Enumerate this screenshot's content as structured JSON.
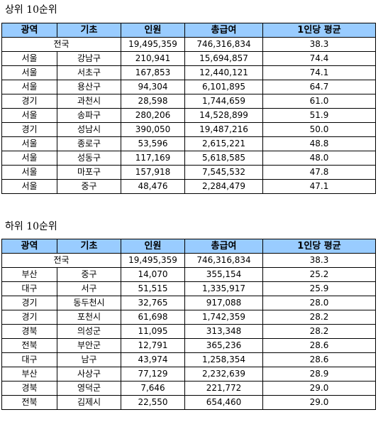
{
  "top": {
    "title": "상위 10순위",
    "headers": [
      "광역",
      "기초",
      "인원",
      "총급여",
      "1인당 평균"
    ],
    "total": {
      "label": "전국",
      "people": "19,495,359",
      "salary": "746,316,834",
      "avg": "38.3"
    },
    "rows": [
      {
        "region": "서울",
        "district": "강남구",
        "people": "210,941",
        "salary": "15,694,857",
        "avg": "74.4"
      },
      {
        "region": "서울",
        "district": "서초구",
        "people": "167,853",
        "salary": "12,440,121",
        "avg": "74.1"
      },
      {
        "region": "서울",
        "district": "용산구",
        "people": "94,304",
        "salary": "6,101,895",
        "avg": "64.7"
      },
      {
        "region": "경기",
        "district": "과천시",
        "people": "28,598",
        "salary": "1,744,659",
        "avg": "61.0"
      },
      {
        "region": "서울",
        "district": "송파구",
        "people": "280,206",
        "salary": "14,528,899",
        "avg": "51.9"
      },
      {
        "region": "경기",
        "district": "성남시",
        "people": "390,050",
        "salary": "19,487,216",
        "avg": "50.0"
      },
      {
        "region": "서울",
        "district": "종로구",
        "people": "53,596",
        "salary": "2,615,221",
        "avg": "48.8"
      },
      {
        "region": "서울",
        "district": "성동구",
        "people": "117,169",
        "salary": "5,618,585",
        "avg": "48.0"
      },
      {
        "region": "서울",
        "district": "마포구",
        "people": "157,918",
        "salary": "7,545,532",
        "avg": "47.8"
      },
      {
        "region": "서울",
        "district": "중구",
        "people": "48,476",
        "salary": "2,284,479",
        "avg": "47.1"
      }
    ]
  },
  "bottom": {
    "title": "하위 10순위",
    "headers": [
      "광역",
      "기초",
      "인원",
      "총급여",
      "1인당 평균"
    ],
    "total": {
      "label": "전국",
      "people": "19,495,359",
      "salary": "746,316,834",
      "avg": "38.3"
    },
    "rows": [
      {
        "region": "부산",
        "district": "중구",
        "people": "14,070",
        "salary": "355,154",
        "avg": "25.2"
      },
      {
        "region": "대구",
        "district": "서구",
        "people": "51,515",
        "salary": "1,335,917",
        "avg": "25.9"
      },
      {
        "region": "경기",
        "district": "동두천시",
        "people": "32,765",
        "salary": "917,088",
        "avg": "28.0"
      },
      {
        "region": "경기",
        "district": "포천시",
        "people": "61,698",
        "salary": "1,742,359",
        "avg": "28.2"
      },
      {
        "region": "경북",
        "district": "의성군",
        "people": "11,095",
        "salary": "313,348",
        "avg": "28.2"
      },
      {
        "region": "전북",
        "district": "부안군",
        "people": "12,791",
        "salary": "365,236",
        "avg": "28.6"
      },
      {
        "region": "대구",
        "district": "남구",
        "people": "43,974",
        "salary": "1,258,354",
        "avg": "28.6"
      },
      {
        "region": "부산",
        "district": "사상구",
        "people": "77,129",
        "salary": "2,232,639",
        "avg": "28.9"
      },
      {
        "region": "경북",
        "district": "영덕군",
        "people": "7,646",
        "salary": "221,772",
        "avg": "29.0"
      },
      {
        "region": "전북",
        "district": "김제시",
        "people": "22,550",
        "salary": "654,460",
        "avg": "29.0"
      }
    ]
  }
}
